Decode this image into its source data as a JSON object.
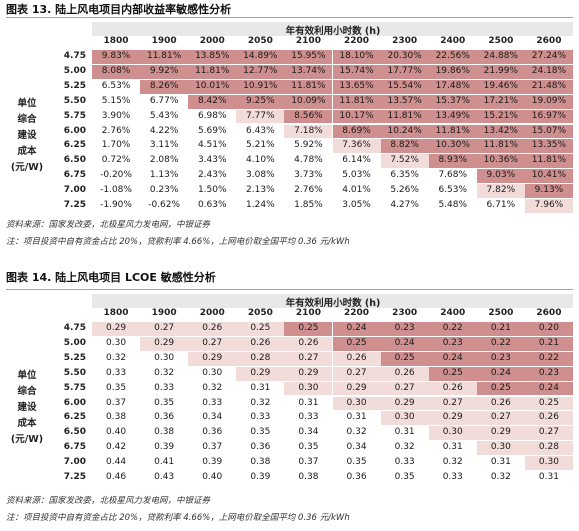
{
  "section1": {
    "title": "图表 13. 陆上风电项目内部收益率敏感性分析",
    "header": "年有效利用小时数 (h)",
    "side_label": [
      "单位",
      "综合",
      "建设",
      "成本",
      "(元/W)"
    ],
    "columns": [
      "1800",
      "1900",
      "2000",
      "2050",
      "2100",
      "2200",
      "2300",
      "2400",
      "2500",
      "2600"
    ],
    "rows": [
      {
        "label": "4.75",
        "values": [
          "9.83%",
          "11.81%",
          "13.85%",
          "14.89%",
          "15.95%",
          "18.10%",
          "20.30%",
          "22.56%",
          "24.88%",
          "27.24%"
        ]
      },
      {
        "label": "5.00",
        "values": [
          "8.08%",
          "9.92%",
          "11.81%",
          "12.77%",
          "13.74%",
          "15.74%",
          "17.77%",
          "19.86%",
          "21.99%",
          "24.18%"
        ]
      },
      {
        "label": "5.25",
        "values": [
          "6.53%",
          "8.26%",
          "10.01%",
          "10.91%",
          "11.81%",
          "13.65%",
          "15.54%",
          "17.48%",
          "19.46%",
          "21.48%"
        ]
      },
      {
        "label": "5.50",
        "values": [
          "5.15%",
          "6.77%",
          "8.42%",
          "9.25%",
          "10.09%",
          "11.81%",
          "13.57%",
          "15.37%",
          "17.21%",
          "19.09%"
        ]
      },
      {
        "label": "5.75",
        "values": [
          "3.90%",
          "5.43%",
          "6.98%",
          "7.77%",
          "8.56%",
          "10.17%",
          "11.81%",
          "13.49%",
          "15.21%",
          "16.97%"
        ]
      },
      {
        "label": "6.00",
        "values": [
          "2.76%",
          "4.22%",
          "5.69%",
          "6.43%",
          "7.18%",
          "8.69%",
          "10.24%",
          "11.81%",
          "13.42%",
          "15.07%"
        ]
      },
      {
        "label": "6.25",
        "values": [
          "1.70%",
          "3.11%",
          "4.51%",
          "5.21%",
          "5.92%",
          "7.36%",
          "8.82%",
          "10.30%",
          "11.81%",
          "13.35%"
        ]
      },
      {
        "label": "6.50",
        "values": [
          "0.72%",
          "2.08%",
          "3.43%",
          "4.10%",
          "4.78%",
          "6.14%",
          "7.52%",
          "8.93%",
          "10.36%",
          "11.81%"
        ]
      },
      {
        "label": "6.75",
        "values": [
          "-0.20%",
          "1.13%",
          "2.43%",
          "3.08%",
          "3.73%",
          "5.03%",
          "6.35%",
          "7.68%",
          "9.03%",
          "10.41%"
        ]
      },
      {
        "label": "7.00",
        "values": [
          "-1.08%",
          "0.23%",
          "1.50%",
          "2.13%",
          "2.76%",
          "4.01%",
          "5.26%",
          "6.53%",
          "7.82%",
          "9.13%"
        ]
      },
      {
        "label": "7.25",
        "values": [
          "-1.90%",
          "-0.62%",
          "0.63%",
          "1.24%",
          "1.85%",
          "3.05%",
          "4.27%",
          "5.48%",
          "6.71%",
          "7.96%"
        ]
      }
    ],
    "shading": [
      [
        2,
        2,
        2,
        2,
        2,
        2,
        2,
        2,
        2,
        2
      ],
      [
        2,
        2,
        2,
        2,
        2,
        2,
        2,
        2,
        2,
        2
      ],
      [
        0,
        2,
        2,
        2,
        2,
        2,
        2,
        2,
        2,
        2
      ],
      [
        0,
        0,
        2,
        2,
        2,
        2,
        2,
        2,
        2,
        2
      ],
      [
        0,
        0,
        0,
        1,
        2,
        2,
        2,
        2,
        2,
        2
      ],
      [
        0,
        0,
        0,
        0,
        1,
        2,
        2,
        2,
        2,
        2
      ],
      [
        0,
        0,
        0,
        0,
        0,
        1,
        2,
        2,
        2,
        2
      ],
      [
        0,
        0,
        0,
        0,
        0,
        0,
        1,
        2,
        2,
        2
      ],
      [
        0,
        0,
        0,
        0,
        0,
        0,
        0,
        0,
        2,
        2
      ],
      [
        0,
        0,
        0,
        0,
        0,
        0,
        0,
        0,
        1,
        2
      ],
      [
        0,
        0,
        0,
        0,
        0,
        0,
        0,
        0,
        0,
        1
      ]
    ],
    "source": "资料来源：国家发改委，北极星风力发电网，中银证券",
    "note": "注：项目投资中自有资金占比 20%，贷款利率 4.66%，上网电价取全国平均 0.36 元/kWh"
  },
  "section2": {
    "title": "图表 14. 陆上风电项目 LCOE 敏感性分析",
    "header": "年有效利用小时数 (h)",
    "side_label": [
      "单位",
      "综合",
      "建设",
      "成本",
      "(元/W)"
    ],
    "columns": [
      "1800",
      "1900",
      "2000",
      "2050",
      "2100",
      "2200",
      "2300",
      "2400",
      "2500",
      "2600"
    ],
    "rows": [
      {
        "label": "4.75",
        "values": [
          "0.29",
          "0.27",
          "0.26",
          "0.25",
          "0.25",
          "0.24",
          "0.23",
          "0.22",
          "0.21",
          "0.20"
        ]
      },
      {
        "label": "5.00",
        "values": [
          "0.30",
          "0.29",
          "0.27",
          "0.26",
          "0.26",
          "0.25",
          "0.24",
          "0.23",
          "0.22",
          "0.21"
        ]
      },
      {
        "label": "5.25",
        "values": [
          "0.32",
          "0.30",
          "0.29",
          "0.28",
          "0.27",
          "0.26",
          "0.25",
          "0.24",
          "0.23",
          "0.22"
        ]
      },
      {
        "label": "5.50",
        "values": [
          "0.33",
          "0.32",
          "0.30",
          "0.29",
          "0.29",
          "0.27",
          "0.26",
          "0.25",
          "0.24",
          "0.23"
        ]
      },
      {
        "label": "5.75",
        "values": [
          "0.35",
          "0.33",
          "0.32",
          "0.31",
          "0.30",
          "0.29",
          "0.27",
          "0.26",
          "0.25",
          "0.24"
        ]
      },
      {
        "label": "6.00",
        "values": [
          "0.37",
          "0.35",
          "0.33",
          "0.32",
          "0.31",
          "0.30",
          "0.29",
          "0.27",
          "0.26",
          "0.25"
        ]
      },
      {
        "label": "6.25",
        "values": [
          "0.38",
          "0.36",
          "0.34",
          "0.33",
          "0.33",
          "0.31",
          "0.30",
          "0.29",
          "0.27",
          "0.26"
        ]
      },
      {
        "label": "6.50",
        "values": [
          "0.40",
          "0.38",
          "0.36",
          "0.35",
          "0.34",
          "0.32",
          "0.31",
          "0.30",
          "0.29",
          "0.27"
        ]
      },
      {
        "label": "6.75",
        "values": [
          "0.42",
          "0.39",
          "0.37",
          "0.36",
          "0.35",
          "0.34",
          "0.32",
          "0.31",
          "0.30",
          "0.28"
        ]
      },
      {
        "label": "7.00",
        "values": [
          "0.44",
          "0.41",
          "0.39",
          "0.38",
          "0.37",
          "0.35",
          "0.33",
          "0.32",
          "0.31",
          "0.30"
        ]
      },
      {
        "label": "7.25",
        "values": [
          "0.46",
          "0.43",
          "0.40",
          "0.39",
          "0.38",
          "0.36",
          "0.35",
          "0.33",
          "0.32",
          "0.31"
        ]
      }
    ],
    "shading": [
      [
        1,
        1,
        1,
        1,
        2,
        2,
        2,
        2,
        2,
        2
      ],
      [
        0,
        1,
        1,
        1,
        1,
        2,
        2,
        2,
        2,
        2
      ],
      [
        0,
        0,
        1,
        1,
        1,
        1,
        2,
        2,
        2,
        2
      ],
      [
        0,
        0,
        0,
        1,
        1,
        1,
        1,
        2,
        2,
        2
      ],
      [
        0,
        0,
        0,
        0,
        1,
        1,
        1,
        1,
        2,
        2
      ],
      [
        0,
        0,
        0,
        0,
        0,
        1,
        1,
        1,
        1,
        1
      ],
      [
        0,
        0,
        0,
        0,
        0,
        0,
        1,
        1,
        1,
        1
      ],
      [
        0,
        0,
        0,
        0,
        0,
        0,
        0,
        1,
        1,
        1
      ],
      [
        0,
        0,
        0,
        0,
        0,
        0,
        0,
        0,
        1,
        1
      ],
      [
        0,
        0,
        0,
        0,
        0,
        0,
        0,
        0,
        0,
        1
      ],
      [
        0,
        0,
        0,
        0,
        0,
        0,
        0,
        0,
        0,
        0
      ]
    ],
    "source": "资料来源：国家发改委，北极星风力发电网，中银证券",
    "note": "注：项目投资中自有资金占比 20%，贷款利率 4.66%，上网电价取全国平均 0.36 元/kWh"
  },
  "colors": {
    "dark": "#cf8f8e",
    "light": "#f2dcd9",
    "header_bg": "#e8e8e8",
    "rule": "#c9968e"
  }
}
